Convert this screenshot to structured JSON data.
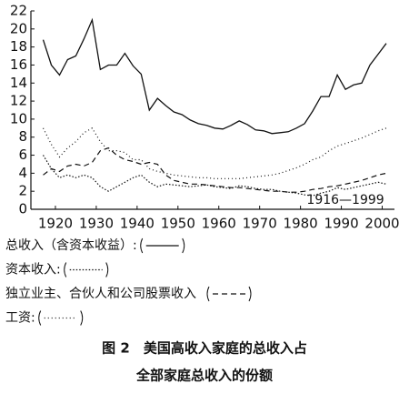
{
  "chart_data": {
    "type": "line",
    "x": [
      1917,
      1919,
      1921,
      1923,
      1925,
      1927,
      1929,
      1931,
      1933,
      1935,
      1937,
      1939,
      1941,
      1943,
      1945,
      1947,
      1949,
      1951,
      1953,
      1955,
      1957,
      1959,
      1961,
      1963,
      1965,
      1967,
      1969,
      1971,
      1973,
      1975,
      1977,
      1979,
      1981,
      1983,
      1985,
      1987,
      1989,
      1991,
      1993,
      1995,
      1997,
      1999,
      2001
    ],
    "series": [
      {
        "name": "总收入（含资本收益）:",
        "color": "#111111",
        "dash": "none",
        "values": [
          18.8,
          16.0,
          14.9,
          16.6,
          17.0,
          18.9,
          21.0,
          15.5,
          16.0,
          16.0,
          17.3,
          15.9,
          15.0,
          11.0,
          12.3,
          11.5,
          10.8,
          10.5,
          9.9,
          9.5,
          9.3,
          9.0,
          8.9,
          9.3,
          9.8,
          9.4,
          8.8,
          8.7,
          8.4,
          8.5,
          8.6,
          9.0,
          9.5,
          10.9,
          12.5,
          12.5,
          14.9,
          13.3,
          13.8,
          14.0,
          16.0,
          17.2,
          18.4
        ]
      },
      {
        "name": "资本收入:",
        "color": "#111111",
        "dash": "1.5,2",
        "values": [
          6.0,
          4.5,
          3.5,
          3.8,
          3.5,
          3.8,
          3.5,
          2.5,
          2.0,
          2.5,
          3.0,
          3.5,
          3.8,
          3.0,
          2.5,
          2.8,
          2.7,
          2.6,
          2.5,
          2.6,
          2.7,
          2.5,
          2.4,
          2.3,
          2.6,
          2.5,
          2.3,
          2.2,
          2.2,
          2.0,
          1.9,
          1.8,
          1.6,
          1.5,
          1.8,
          2.0,
          2.4,
          2.2,
          2.4,
          2.6,
          2.8,
          3.0,
          2.8
        ]
      },
      {
        "name": "独立业主、合伙人和公司股票收入",
        "color": "#111111",
        "dash": "6,4",
        "values": [
          3.8,
          4.5,
          4.2,
          4.8,
          5.0,
          4.8,
          5.2,
          6.5,
          6.8,
          6.0,
          5.5,
          5.3,
          5.0,
          5.2,
          5.0,
          3.8,
          3.2,
          3.0,
          2.8,
          2.8,
          2.7,
          2.6,
          2.5,
          2.4,
          2.4,
          2.3,
          2.2,
          2.1,
          2.0,
          2.0,
          1.9,
          1.9,
          2.0,
          2.2,
          2.3,
          2.5,
          2.6,
          2.8,
          3.0,
          3.2,
          3.5,
          3.8,
          4.0
        ]
      },
      {
        "name": "工资:",
        "color": "#111111",
        "dash": "1,3",
        "values": [
          9.0,
          7.2,
          5.8,
          6.8,
          7.5,
          8.5,
          9.0,
          7.5,
          6.5,
          6.5,
          6.3,
          5.5,
          5.5,
          4.5,
          4.2,
          4.0,
          3.8,
          3.7,
          3.6,
          3.5,
          3.5,
          3.4,
          3.4,
          3.4,
          3.4,
          3.5,
          3.6,
          3.7,
          3.8,
          4.0,
          4.3,
          4.6,
          5.0,
          5.5,
          5.8,
          6.5,
          7.0,
          7.3,
          7.6,
          7.9,
          8.3,
          8.7,
          9.0
        ]
      }
    ],
    "xlim": [
      1914,
      2003
    ],
    "xticks": [
      1920,
      1930,
      1940,
      1950,
      1960,
      1970,
      1980,
      1990,
      2000
    ],
    "ylim": [
      0,
      22
    ],
    "yticks": [
      0,
      2,
      4,
      6,
      8,
      10,
      12,
      14,
      16,
      18,
      20,
      22
    ],
    "annotation": {
      "text": "1916—1999",
      "x": 1991,
      "y": 1.0
    },
    "caption": [
      "图 2　美国高收入家庭的总收入占",
      "全部家庭总收入的份额"
    ]
  }
}
